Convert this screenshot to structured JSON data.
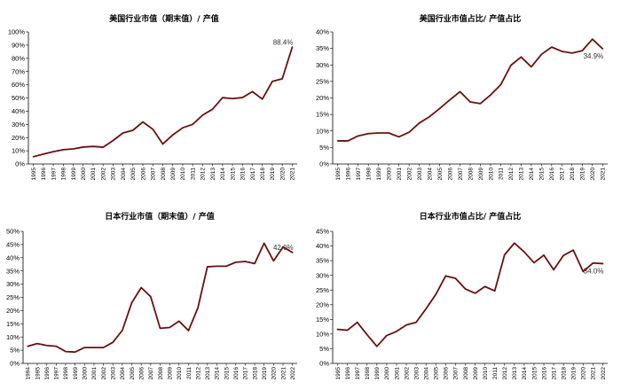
{
  "colors": {
    "line": "#6b0f0f",
    "axis": "#000000"
  },
  "chart_data": [
    {
      "type": "line",
      "title": "美国行业市值（期末值）/ 产值",
      "x": [
        "1995",
        "1996",
        "1997",
        "1998",
        "1999",
        "2000",
        "2001",
        "2002",
        "2003",
        "2004",
        "2005",
        "2006",
        "2007",
        "2008",
        "2009",
        "2010",
        "2011",
        "2012",
        "2013",
        "2014",
        "2015",
        "2016",
        "2017",
        "2018",
        "2019",
        "2020",
        "2021"
      ],
      "values": [
        5.5,
        7.5,
        9.3,
        10.8,
        11.4,
        12.8,
        13.3,
        12.7,
        17.7,
        23.5,
        25.5,
        31.8,
        26.3,
        15.1,
        22.0,
        27.4,
        30.0,
        37.0,
        41.5,
        50.2,
        49.5,
        50.3,
        54.8,
        49.1,
        62.5,
        64.5,
        88.4
      ],
      "yticks": [
        "0%",
        "10%",
        "20%",
        "30%",
        "40%",
        "50%",
        "60%",
        "70%",
        "80%",
        "90%",
        "100%"
      ],
      "ylim": [
        0,
        100
      ],
      "end_label": "88.4%"
    },
    {
      "type": "line",
      "title": "美国行业市值占比/ 产值占比",
      "x": [
        "1995",
        "1996",
        "1997",
        "1998",
        "1999",
        "2000",
        "2001",
        "2002",
        "2003",
        "2004",
        "2005",
        "2006",
        "2007",
        "2008",
        "2009",
        "2010",
        "2011",
        "2012",
        "2013",
        "2014",
        "2015",
        "2016",
        "2017",
        "2018",
        "2019",
        "2020",
        "2021"
      ],
      "values": [
        7.0,
        7.0,
        8.5,
        9.2,
        9.4,
        9.4,
        8.2,
        9.6,
        12.4,
        14.3,
        16.8,
        19.4,
        21.9,
        18.8,
        18.3,
        20.9,
        24.0,
        29.9,
        32.4,
        29.4,
        33.2,
        35.4,
        34.1,
        33.6,
        34.3,
        37.8,
        34.9
      ],
      "yticks": [
        "0%",
        "5%",
        "10%",
        "15%",
        "20%",
        "25%",
        "30%",
        "35%",
        "40%"
      ],
      "ylim": [
        0,
        40
      ],
      "end_label": "34.9%"
    },
    {
      "type": "line",
      "title": "日本行业市值（期末值）/ 产值",
      "x": [
        "1994",
        "1995",
        "1996",
        "1997",
        "1998",
        "1999",
        "2000",
        "2001",
        "2002",
        "2003",
        "2004",
        "2005",
        "2006",
        "2007",
        "2008",
        "2009",
        "2010",
        "2011",
        "2012",
        "2013",
        "2014",
        "2015",
        "2016",
        "2017",
        "2018",
        "2019",
        "2020",
        "2021",
        "2022"
      ],
      "values": [
        6.5,
        7.5,
        6.8,
        6.5,
        4.5,
        4.3,
        6.0,
        6.0,
        6.0,
        8.0,
        12.5,
        23.0,
        28.7,
        25.3,
        13.3,
        13.6,
        16.0,
        12.4,
        21.1,
        36.6,
        36.8,
        36.8,
        38.3,
        38.6,
        37.8,
        45.5,
        38.8,
        44.1,
        42.0
      ],
      "yticks": [
        "0%",
        "5%",
        "10%",
        "15%",
        "20%",
        "25%",
        "30%",
        "35%",
        "40%",
        "45%",
        "50%"
      ],
      "ylim": [
        0,
        50
      ],
      "end_label": "42.0%"
    },
    {
      "type": "line",
      "title": "日本行业市值占比/ 产值占比",
      "x": [
        "1995",
        "1996",
        "1997",
        "1998",
        "1999",
        "2000",
        "2001",
        "2002",
        "2003",
        "2004",
        "2005",
        "2006",
        "2007",
        "2008",
        "2009",
        "2010",
        "2011",
        "2012",
        "2013",
        "2014",
        "2015",
        "2016",
        "2017",
        "2018",
        "2019",
        "2020",
        "2021",
        "2022"
      ],
      "values": [
        11.6,
        11.3,
        14.0,
        9.8,
        5.8,
        9.5,
        10.9,
        13.1,
        14.0,
        18.6,
        23.5,
        29.8,
        29.0,
        25.4,
        23.9,
        26.2,
        24.7,
        37.0,
        41.0,
        38.0,
        34.3,
        36.9,
        31.9,
        36.8,
        38.6,
        31.3,
        34.2,
        34.0
      ],
      "yticks": [
        "0%",
        "5%",
        "10%",
        "15%",
        "20%",
        "25%",
        "30%",
        "35%",
        "40%",
        "45%"
      ],
      "ylim": [
        0,
        45
      ],
      "end_label": "34.0%"
    }
  ]
}
